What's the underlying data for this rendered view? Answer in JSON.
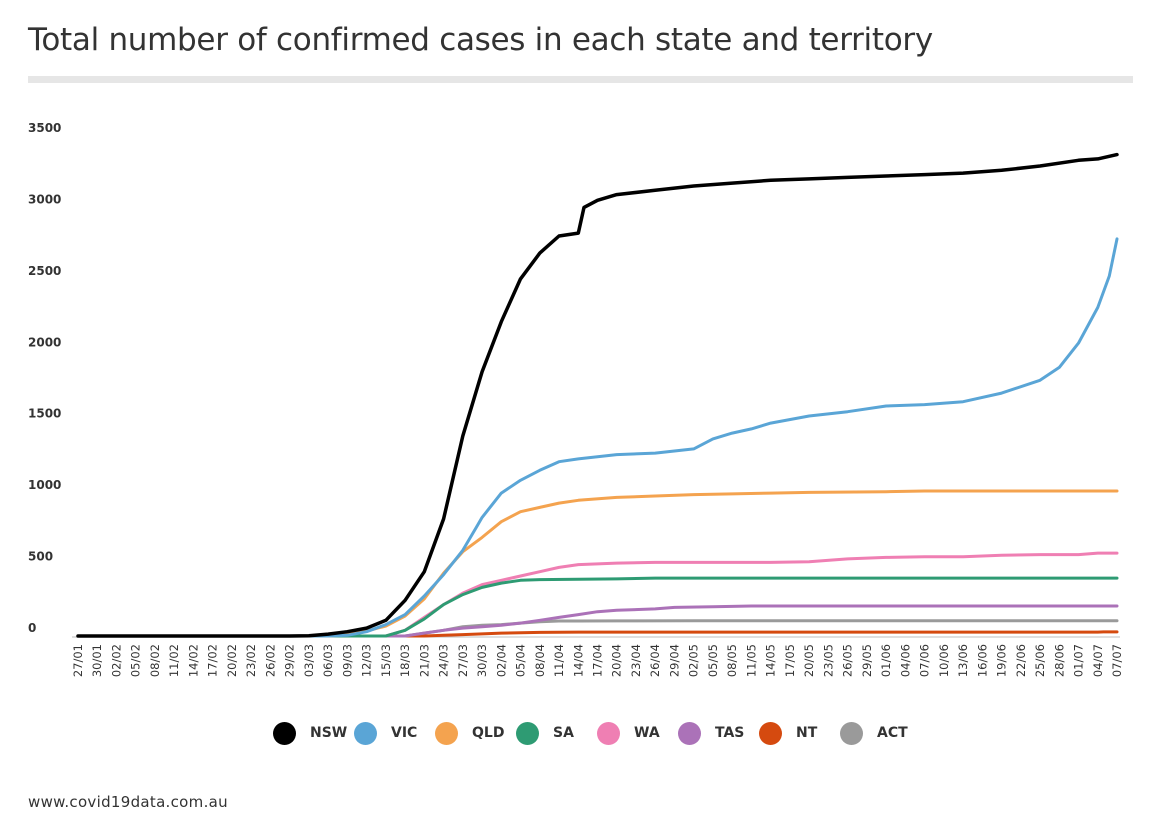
{
  "title": "Total number of confirmed cases in each state and territory",
  "source": "www.covid19data.com.au",
  "chart_data": {
    "type": "line",
    "title": "Total number of confirmed cases in each state and territory",
    "xlabel": "",
    "ylabel": "",
    "ylim": [
      0,
      3500
    ],
    "yticks": [
      0,
      500,
      1000,
      1500,
      2000,
      2500,
      3000,
      3500
    ],
    "grid": false,
    "legend": "bottom",
    "x_tick_labels": [
      "27/01",
      "30/01",
      "02/02",
      "05/02",
      "08/02",
      "11/02",
      "14/02",
      "17/02",
      "20/02",
      "23/02",
      "26/02",
      "29/02",
      "03/03",
      "06/03",
      "09/03",
      "12/03",
      "15/03",
      "18/03",
      "21/03",
      "24/03",
      "27/03",
      "30/03",
      "02/04",
      "05/04",
      "08/04",
      "11/04",
      "14/04",
      "17/04",
      "20/04",
      "23/04",
      "26/04",
      "29/04",
      "02/05",
      "05/05",
      "08/05",
      "11/05",
      "14/05",
      "17/05",
      "20/05",
      "23/05",
      "26/05",
      "29/05",
      "01/06",
      "04/06",
      "07/06",
      "10/06",
      "13/06",
      "16/06",
      "19/06",
      "22/06",
      "25/06",
      "28/06",
      "01/07",
      "04/07",
      "07/07"
    ],
    "series": [
      {
        "name": "NSW",
        "color": "#000000",
        "points": [
          [
            0,
            0
          ],
          [
            11,
            0
          ],
          [
            12,
            2
          ],
          [
            13,
            13
          ],
          [
            14,
            30
          ],
          [
            15,
            55
          ],
          [
            16,
            110
          ],
          [
            17,
            250
          ],
          [
            18,
            450
          ],
          [
            19,
            820
          ],
          [
            20,
            1400
          ],
          [
            21,
            1850
          ],
          [
            22,
            2200
          ],
          [
            23,
            2500
          ],
          [
            24,
            2680
          ],
          [
            25,
            2800
          ],
          [
            26,
            2820
          ],
          [
            26.3,
            3000
          ],
          [
            27,
            3050
          ],
          [
            28,
            3090
          ],
          [
            30,
            3120
          ],
          [
            32,
            3150
          ],
          [
            34,
            3170
          ],
          [
            36,
            3190
          ],
          [
            38,
            3200
          ],
          [
            40,
            3210
          ],
          [
            42,
            3220
          ],
          [
            44,
            3230
          ],
          [
            46,
            3240
          ],
          [
            48,
            3260
          ],
          [
            50,
            3290
          ],
          [
            52,
            3330
          ],
          [
            53,
            3340
          ],
          [
            54,
            3370
          ]
        ]
      },
      {
        "name": "VIC",
        "color": "#5aa5d6",
        "points": [
          [
            0,
            0
          ],
          [
            13,
            0
          ],
          [
            14,
            5
          ],
          [
            15,
            30
          ],
          [
            16,
            80
          ],
          [
            17,
            150
          ],
          [
            18,
            280
          ],
          [
            19,
            430
          ],
          [
            20,
            600
          ],
          [
            20.7,
            760
          ],
          [
            21,
            830
          ],
          [
            22,
            1000
          ],
          [
            23,
            1090
          ],
          [
            24,
            1160
          ],
          [
            25,
            1220
          ],
          [
            26,
            1240
          ],
          [
            28,
            1270
          ],
          [
            30,
            1280
          ],
          [
            32,
            1310
          ],
          [
            33,
            1380
          ],
          [
            34,
            1420
          ],
          [
            35,
            1450
          ],
          [
            36,
            1490
          ],
          [
            38,
            1540
          ],
          [
            40,
            1570
          ],
          [
            42,
            1610
          ],
          [
            44,
            1620
          ],
          [
            46,
            1640
          ],
          [
            48,
            1700
          ],
          [
            50,
            1790
          ],
          [
            51,
            1880
          ],
          [
            52,
            2050
          ],
          [
            53,
            2300
          ],
          [
            53.6,
            2520
          ],
          [
            54,
            2780
          ]
        ]
      },
      {
        "name": "QLD",
        "color": "#f4a34f",
        "points": [
          [
            0,
            0
          ],
          [
            13,
            0
          ],
          [
            14,
            10
          ],
          [
            15,
            35
          ],
          [
            16,
            70
          ],
          [
            17,
            140
          ],
          [
            18,
            260
          ],
          [
            19,
            440
          ],
          [
            20,
            590
          ],
          [
            21,
            690
          ],
          [
            22,
            800
          ],
          [
            23,
            870
          ],
          [
            24,
            900
          ],
          [
            25,
            930
          ],
          [
            26,
            950
          ],
          [
            28,
            970
          ],
          [
            30,
            980
          ],
          [
            32,
            990
          ],
          [
            34,
            995
          ],
          [
            36,
            1000
          ],
          [
            38,
            1005
          ],
          [
            42,
            1010
          ],
          [
            44,
            1015
          ],
          [
            48,
            1015
          ],
          [
            54,
            1015
          ]
        ]
      },
      {
        "name": "SA",
        "color": "#2e9b73",
        "points": [
          [
            0,
            0
          ],
          [
            16,
            0
          ],
          [
            17,
            40
          ],
          [
            18,
            120
          ],
          [
            19,
            220
          ],
          [
            20,
            290
          ],
          [
            21,
            340
          ],
          [
            22,
            370
          ],
          [
            23,
            390
          ],
          [
            24,
            395
          ],
          [
            28,
            400
          ],
          [
            30,
            405
          ],
          [
            54,
            405
          ]
        ]
      },
      {
        "name": "WA",
        "color": "#ef7fb3",
        "points": [
          [
            0,
            0
          ],
          [
            16,
            0
          ],
          [
            17,
            40
          ],
          [
            18,
            130
          ],
          [
            19,
            220
          ],
          [
            20,
            300
          ],
          [
            21,
            360
          ],
          [
            22,
            390
          ],
          [
            23,
            420
          ],
          [
            24,
            450
          ],
          [
            25,
            480
          ],
          [
            26,
            500
          ],
          [
            28,
            510
          ],
          [
            30,
            515
          ],
          [
            36,
            515
          ],
          [
            38,
            520
          ],
          [
            40,
            540
          ],
          [
            42,
            550
          ],
          [
            44,
            555
          ],
          [
            46,
            555
          ],
          [
            48,
            565
          ],
          [
            50,
            570
          ],
          [
            52,
            570
          ],
          [
            53,
            580
          ],
          [
            54,
            580
          ]
        ]
      },
      {
        "name": "TAS",
        "color": "#ab72b8",
        "points": [
          [
            0,
            0
          ],
          [
            17,
            0
          ],
          [
            18,
            20
          ],
          [
            19,
            40
          ],
          [
            20,
            55
          ],
          [
            21,
            65
          ],
          [
            22,
            75
          ],
          [
            23,
            90
          ],
          [
            24,
            110
          ],
          [
            25,
            130
          ],
          [
            26,
            150
          ],
          [
            27,
            170
          ],
          [
            28,
            180
          ],
          [
            30,
            190
          ],
          [
            31,
            200
          ],
          [
            33,
            205
          ],
          [
            35,
            210
          ],
          [
            40,
            210
          ],
          [
            54,
            210
          ]
        ]
      },
      {
        "name": "NT",
        "color": "#d54a0f",
        "points": [
          [
            0,
            0
          ],
          [
            18,
            0
          ],
          [
            19,
            5
          ],
          [
            20,
            10
          ],
          [
            21,
            15
          ],
          [
            22,
            20
          ],
          [
            24,
            25
          ],
          [
            26,
            27
          ],
          [
            53,
            27
          ],
          [
            53.3,
            29
          ],
          [
            54,
            29
          ]
        ]
      },
      {
        "name": "ACT",
        "color": "#9a9a9a",
        "points": [
          [
            0,
            0
          ],
          [
            17,
            0
          ],
          [
            18,
            20
          ],
          [
            19,
            40
          ],
          [
            20,
            65
          ],
          [
            21,
            75
          ],
          [
            22,
            80
          ],
          [
            23,
            90
          ],
          [
            24,
            100
          ],
          [
            25,
            105
          ],
          [
            26,
            105
          ],
          [
            28,
            106
          ],
          [
            32,
            107
          ],
          [
            54,
            107
          ]
        ]
      }
    ]
  }
}
